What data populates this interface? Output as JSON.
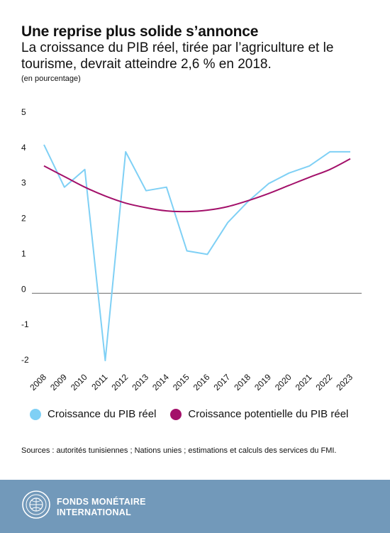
{
  "header": {
    "title": "Une reprise plus solide s’annonce",
    "subtitle": "La croissance du PIB réel, tirée par l’agriculture et le tourisme, devrait atteindre 2,6 % en 2018.",
    "unit": "(en pourcentage)"
  },
  "chart_data": {
    "type": "line",
    "x": [
      "2008",
      "2009",
      "2010",
      "2011",
      "2012",
      "2013",
      "2014",
      "2015",
      "2016",
      "2017",
      "2018",
      "2019",
      "2020",
      "2021",
      "2022",
      "2023"
    ],
    "ylim": [
      -2,
      5
    ],
    "yticks": [
      "5",
      "4",
      "3",
      "2",
      "1",
      "0",
      "-1",
      "-2"
    ],
    "ytick_values": [
      5,
      4,
      3,
      2,
      1,
      0,
      -1,
      -2
    ],
    "grid": false,
    "legend_position": "bottom",
    "series": [
      {
        "name": "Croissance du PIB réel",
        "color": "#7fd0f5",
        "values": [
          4.2,
          3.0,
          3.5,
          -1.9,
          4.0,
          2.9,
          3.0,
          1.2,
          1.1,
          2.0,
          2.6,
          3.1,
          3.4,
          3.6,
          4.0,
          4.0
        ]
      },
      {
        "name": "Croissance potentielle du PIB réel",
        "color": "#a3106a",
        "values": [
          3.6,
          3.3,
          3.0,
          2.75,
          2.55,
          2.42,
          2.33,
          2.31,
          2.35,
          2.45,
          2.62,
          2.82,
          3.05,
          3.28,
          3.5,
          3.8
        ]
      }
    ]
  },
  "legend": {
    "items": [
      {
        "label": "Croissance du PIB réel",
        "color": "#7fd0f5"
      },
      {
        "label": "Croissance potentielle du PIB réel",
        "color": "#a3106a"
      }
    ]
  },
  "source": "Sources : autorités tunisiennes ; Nations unies ; estimations et calculs des services du FMI.",
  "footer": {
    "org_line1": "FONDS MONÉTAIRE",
    "org_line2": "INTERNATIONAL",
    "seal_icon": "imf-seal-icon"
  }
}
